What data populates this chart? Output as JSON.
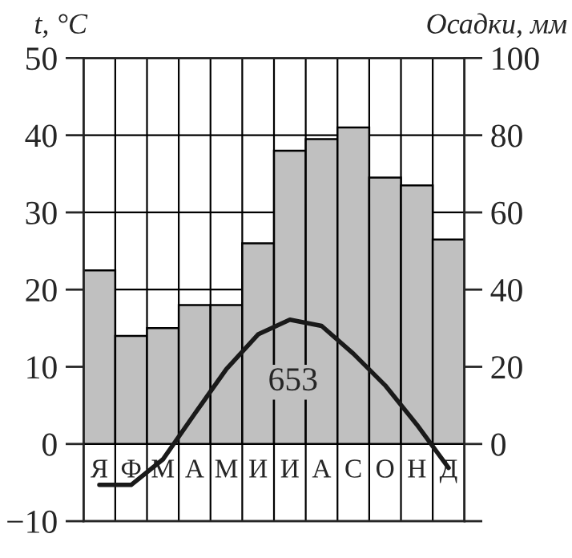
{
  "chart_data": {
    "type": "line",
    "ylabel": "t, °C",
    "y2label": "Осадки, мм",
    "categories": [
      "Я",
      "Ф",
      "М",
      "А",
      "М",
      "И",
      "И",
      "А",
      "С",
      "О",
      "Н",
      "Д"
    ],
    "series": [
      {
        "type": "bar",
        "axis": "y2",
        "color": "#c0c0c0",
        "values": [
          45,
          28,
          30,
          36,
          36,
          52,
          76,
          79,
          82,
          69,
          67,
          53
        ]
      },
      {
        "color": "#1a1a1a",
        "values": [
          -5.3,
          -5.3,
          -2,
          3.9,
          9.7,
          14.2,
          16.1,
          15.3,
          11.7,
          7.6,
          2.5,
          -3.1
        ]
      }
    ],
    "ylim": [
      -10,
      50
    ],
    "yticks": [
      {
        "value": -10,
        "label": "−10"
      },
      0,
      10,
      20,
      30,
      40,
      50
    ],
    "y2lim": [
      -20,
      100
    ],
    "y2ticks": [
      {
        "value": -20,
        "label": null
      },
      0,
      20,
      40,
      60,
      80,
      100
    ],
    "annotations": [
      "653"
    ],
    "grid": true,
    "marker": "none",
    "line_style": "solid"
  }
}
